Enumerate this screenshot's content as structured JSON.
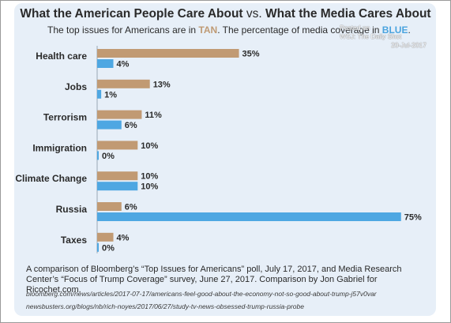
{
  "header": {
    "title_part1": "What the American People Care About",
    "title_vs": "vs.",
    "title_part2": "What the Media Cares About",
    "subtitle_pre": "The top issues for Americans are in ",
    "subtitle_tan": "TAN",
    "subtitle_mid": ". The percentage of media coverage in ",
    "subtitle_blue": "BLUE",
    "subtitle_end": "."
  },
  "watermark": {
    "line1": "Posted on",
    "line2": "WSJ: The Daily Shot",
    "date": "20-Jul-2017"
  },
  "colors": {
    "tan": "#c19a73",
    "blue": "#4ea7e2",
    "panel": "#e7eff8"
  },
  "chart_data": {
    "type": "bar",
    "orientation": "horizontal",
    "categories": [
      "Health care",
      "Jobs",
      "Terrorism",
      "Immigration",
      "Climate Change",
      "Russia",
      "Taxes"
    ],
    "series": [
      {
        "name": "Top issues for Americans",
        "color": "tan",
        "values": [
          35,
          13,
          11,
          10,
          10,
          6,
          4
        ]
      },
      {
        "name": "Media coverage",
        "color": "blue",
        "values": [
          4,
          1,
          6,
          0,
          10,
          75,
          0
        ]
      }
    ],
    "value_suffix": "%",
    "xlim": [
      0,
      75
    ],
    "grid": false,
    "legend": "none"
  },
  "footer": {
    "note": "A comparison of Bloomberg’s “Top Issues for Americans” poll, July 17, 2017, and Media Research Center’s “Focus of Trump Coverage” survey, June 27, 2017. Comparison by Jon Gabriel for Ricochet.com.",
    "url1": "bloomberg.com/news/articles/2017-07-17/americans-feel-good-about-the-economy-not-so-good-about-trump-j57v0var",
    "url2": "newsbusters.org/blogs/nb/rich-noyes/2017/06/27/study-tv-news-obsessed-trump-russia-probe"
  }
}
